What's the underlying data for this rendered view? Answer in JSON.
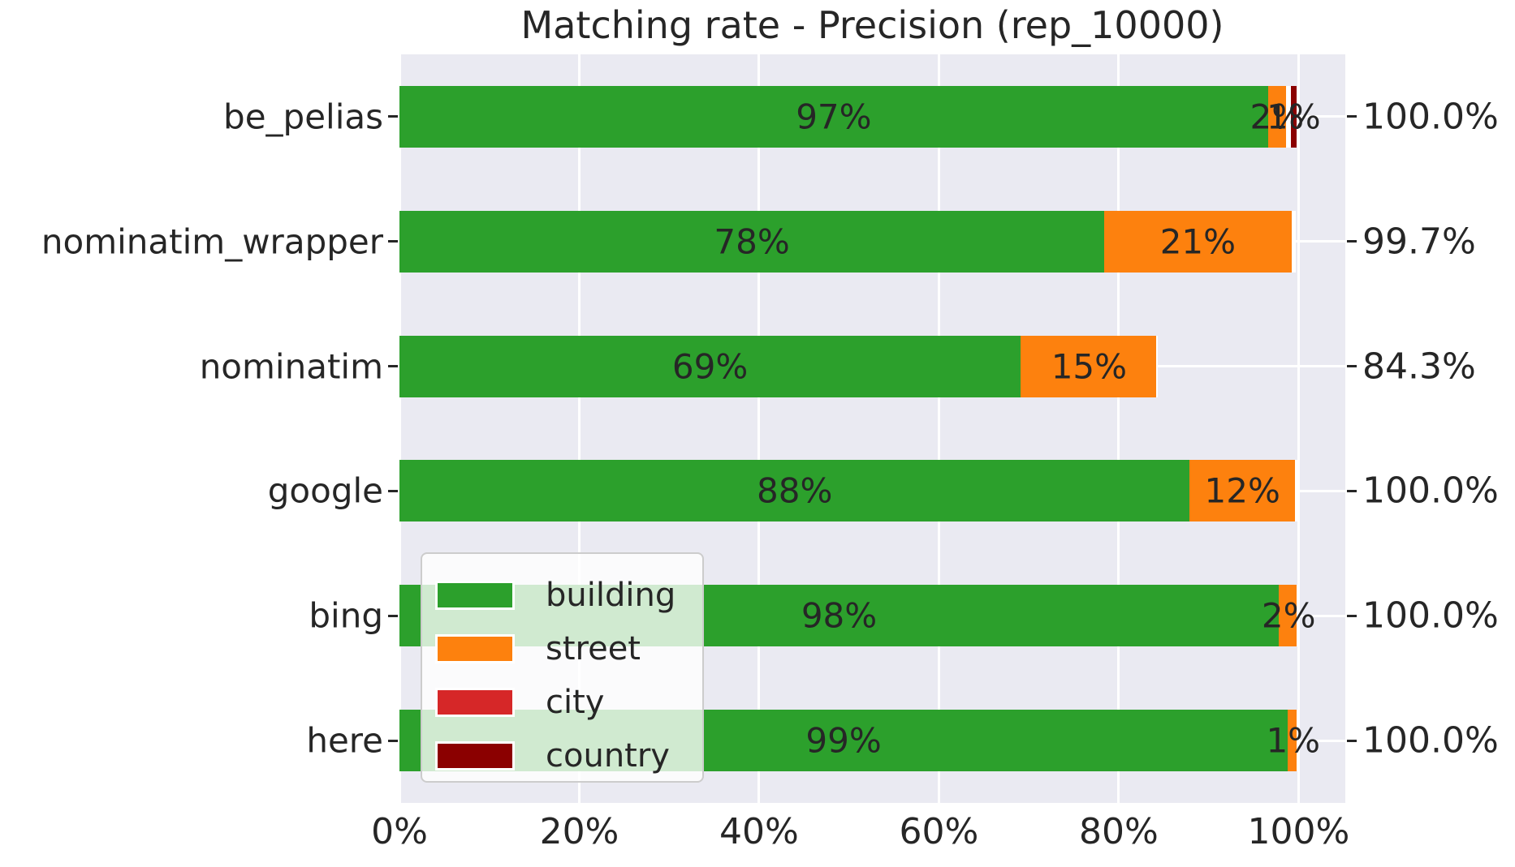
{
  "chart_data": {
    "type": "bar",
    "orientation": "horizontal",
    "stacked": true,
    "title": "Matching rate - Precision (rep_10000)",
    "categories": [
      "be_pelias",
      "nominatim_wrapper",
      "nominatim",
      "google",
      "bing",
      "here"
    ],
    "series": [
      {
        "name": "building",
        "color": "#2ca02c",
        "values": [
          96.6,
          78.4,
          69.1,
          87.9,
          97.8,
          98.8
        ],
        "labels": [
          "97%",
          "78%",
          "69%",
          "88%",
          "98%",
          "99%"
        ],
        "divider": false
      },
      {
        "name": "street",
        "color": "#fd810e",
        "values": [
          2.0,
          20.8,
          15.2,
          11.7,
          2.2,
          1.2
        ],
        "labels": [
          "2%",
          "21%",
          "15%",
          "12%",
          "2%",
          "1%"
        ],
        "divider": false
      },
      {
        "name": "city",
        "color": "#d62728",
        "values": [
          0.3,
          0.5,
          0,
          0.4,
          0,
          0
        ],
        "labels": [
          "",
          "",
          "",
          "",
          "",
          ""
        ],
        "divider": true
      },
      {
        "name": "country",
        "color": "#8b0000",
        "values": [
          1.1,
          0,
          0,
          0,
          0,
          0
        ],
        "labels": [
          "1%",
          "",
          "",
          "",
          "",
          ""
        ],
        "divider": true
      }
    ],
    "bar_totals": [
      "100.0%",
      "99.7%",
      "84.3%",
      "100.0%",
      "100.0%",
      "100.0%"
    ],
    "x_tick_labels": [
      "0%",
      "20%",
      "40%",
      "60%",
      "80%",
      "100%"
    ],
    "x_tick_values": [
      0,
      20,
      40,
      60,
      80,
      100
    ],
    "xlim": [
      0,
      105.2
    ],
    "grid": true,
    "legend": {
      "position": "lower-left-inside",
      "entries": [
        {
          "label": "building",
          "color": "#2ca02c"
        },
        {
          "label": "street",
          "color": "#fd810e"
        },
        {
          "label": "city",
          "color": "#d62728"
        },
        {
          "label": "country",
          "color": "#8b0000"
        }
      ]
    },
    "colors": {
      "plot_background": "#eaeaf2",
      "gridline": "#ffffff",
      "text": "#262626"
    }
  }
}
